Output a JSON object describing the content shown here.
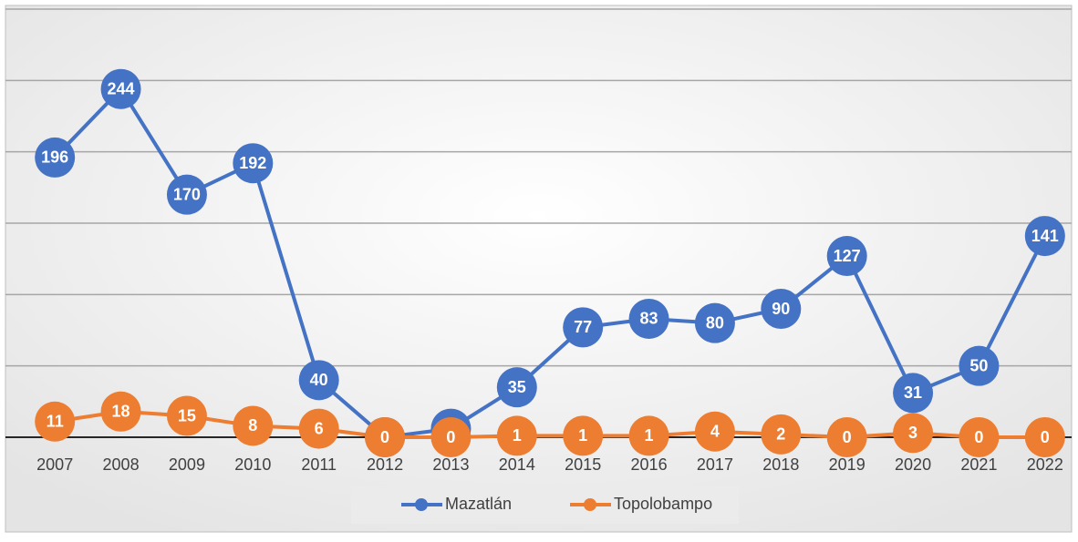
{
  "chart_data": {
    "type": "line",
    "categories": [
      "2007",
      "2008",
      "2009",
      "2010",
      "2011",
      "2012",
      "2013",
      "2014",
      "2015",
      "2016",
      "2017",
      "2018",
      "2019",
      "2020",
      "2021",
      "2022"
    ],
    "series": [
      {
        "name": "Mazatlán",
        "color": "#4472c4",
        "values": [
          196,
          244,
          170,
          192,
          40,
          0,
          6,
          35,
          77,
          83,
          80,
          90,
          127,
          31,
          50,
          141
        ]
      },
      {
        "name": "Topolobampo",
        "color": "#ed7d31",
        "values": [
          11,
          18,
          15,
          8,
          6,
          0,
          0,
          1,
          1,
          1,
          4,
          2,
          0,
          3,
          0,
          0
        ]
      }
    ],
    "ylim": [
      0,
      300
    ],
    "yticks": [
      0,
      50,
      100,
      150,
      200,
      250,
      300
    ],
    "grid": true,
    "legend": "bottom"
  }
}
